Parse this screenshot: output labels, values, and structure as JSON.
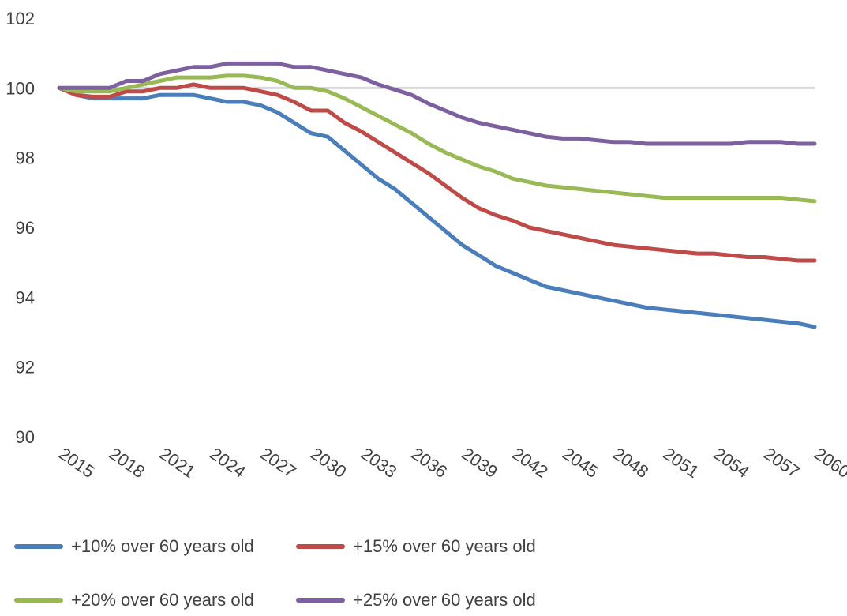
{
  "chart_data": {
    "type": "line",
    "title": "",
    "xlabel": "",
    "ylabel": "",
    "ylim": [
      90,
      102
    ],
    "yticks": [
      90,
      92,
      94,
      96,
      98,
      100,
      102
    ],
    "grid": false,
    "reference_line": 100,
    "x": [
      2015,
      2016,
      2017,
      2018,
      2019,
      2020,
      2021,
      2022,
      2023,
      2024,
      2025,
      2026,
      2027,
      2028,
      2029,
      2030,
      2031,
      2032,
      2033,
      2034,
      2035,
      2036,
      2037,
      2038,
      2039,
      2040,
      2041,
      2042,
      2043,
      2044,
      2045,
      2046,
      2047,
      2048,
      2049,
      2050,
      2051,
      2052,
      2053,
      2054,
      2055,
      2056,
      2057,
      2058,
      2059,
      2060
    ],
    "xtick_labels": [
      "2015",
      "2018",
      "2021",
      "2024",
      "2027",
      "2030",
      "2033",
      "2036",
      "2039",
      "2042",
      "2045",
      "2048",
      "2051",
      "2054",
      "2057",
      "2060"
    ],
    "legend_position": "bottom",
    "series": [
      {
        "name": "+10%  over 60 years old",
        "color": "#4a7ebb",
        "values": [
          100,
          99.8,
          99.7,
          99.7,
          99.7,
          99.7,
          99.8,
          99.8,
          99.8,
          99.7,
          99.6,
          99.6,
          99.5,
          99.3,
          99.0,
          98.7,
          98.6,
          98.2,
          97.8,
          97.4,
          97.1,
          96.7,
          96.3,
          95.9,
          95.5,
          95.2,
          94.9,
          94.7,
          94.5,
          94.3,
          94.2,
          94.1,
          94.0,
          93.9,
          93.8,
          93.7,
          93.65,
          93.6,
          93.55,
          93.5,
          93.45,
          93.4,
          93.35,
          93.3,
          93.25,
          93.15
        ]
      },
      {
        "name": "+15%  over 60 years old",
        "color": "#be4b48",
        "values": [
          100,
          99.8,
          99.75,
          99.75,
          99.9,
          99.9,
          100.0,
          100.0,
          100.1,
          100.0,
          100.0,
          100.0,
          99.9,
          99.8,
          99.6,
          99.35,
          99.35,
          99.0,
          98.75,
          98.45,
          98.15,
          97.85,
          97.55,
          97.2,
          96.85,
          96.55,
          96.35,
          96.2,
          96.0,
          95.9,
          95.8,
          95.7,
          95.6,
          95.5,
          95.45,
          95.4,
          95.35,
          95.3,
          95.25,
          95.25,
          95.2,
          95.15,
          95.15,
          95.1,
          95.05,
          95.05
        ]
      },
      {
        "name": "+20%  over 60 years old",
        "color": "#98b954",
        "values": [
          100,
          99.9,
          99.9,
          99.9,
          100.0,
          100.1,
          100.2,
          100.3,
          100.3,
          100.3,
          100.35,
          100.35,
          100.3,
          100.2,
          100.0,
          100.0,
          99.9,
          99.7,
          99.45,
          99.2,
          98.95,
          98.7,
          98.4,
          98.15,
          97.95,
          97.75,
          97.6,
          97.4,
          97.3,
          97.2,
          97.15,
          97.1,
          97.05,
          97.0,
          96.95,
          96.9,
          96.85,
          96.85,
          96.85,
          96.85,
          96.85,
          96.85,
          96.85,
          96.85,
          96.8,
          96.75
        ]
      },
      {
        "name": "+25%  over 60 years old",
        "color": "#7d60a0",
        "values": [
          100,
          100,
          100,
          100,
          100.2,
          100.2,
          100.4,
          100.5,
          100.6,
          100.6,
          100.7,
          100.7,
          100.7,
          100.7,
          100.6,
          100.6,
          100.5,
          100.4,
          100.3,
          100.1,
          99.95,
          99.8,
          99.55,
          99.35,
          99.15,
          99.0,
          98.9,
          98.8,
          98.7,
          98.6,
          98.55,
          98.55,
          98.5,
          98.45,
          98.45,
          98.4,
          98.4,
          98.4,
          98.4,
          98.4,
          98.4,
          98.45,
          98.45,
          98.45,
          98.4,
          98.4
        ]
      }
    ]
  }
}
